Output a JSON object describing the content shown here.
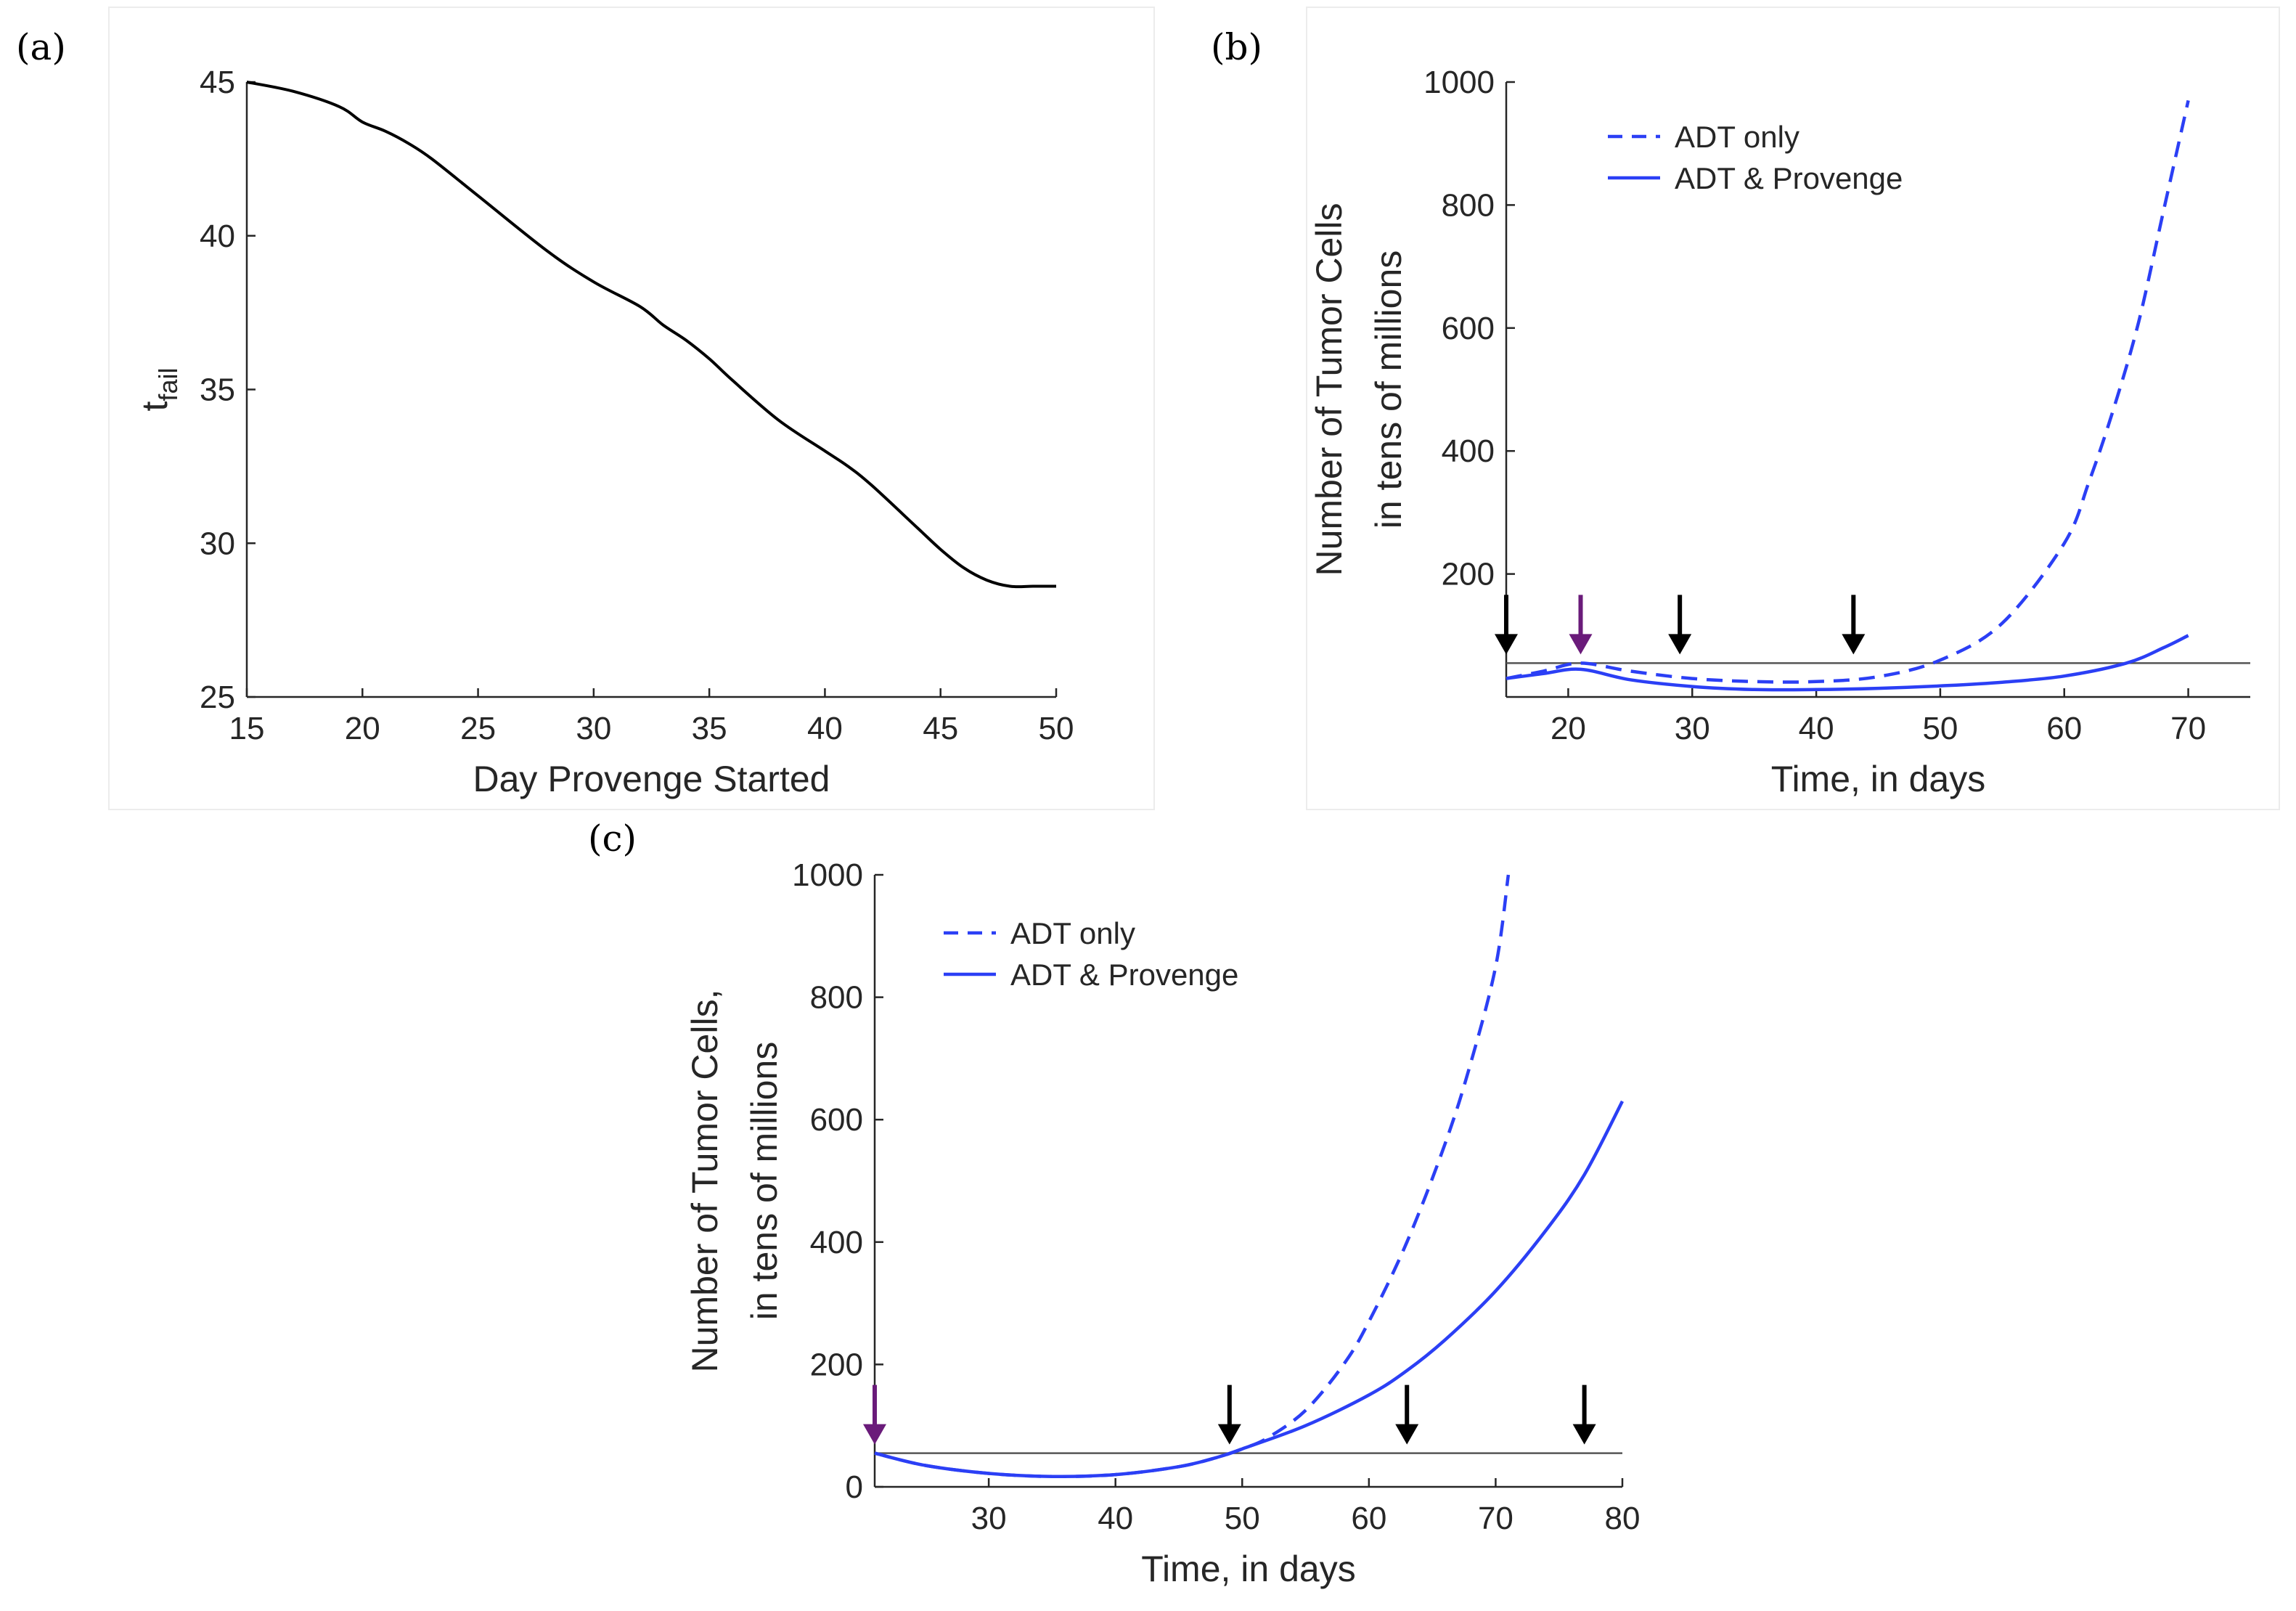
{
  "chart_data": [
    {
      "panel": "(a)",
      "type": "line",
      "xlabel": "Day Provenge Started",
      "ylabel": "t",
      "ylabel_sub": "fail",
      "xlim": [
        15,
        50
      ],
      "ylim": [
        25,
        45
      ],
      "xticks": [
        15,
        20,
        25,
        30,
        35,
        40,
        45,
        50
      ],
      "yticks": [
        25,
        30,
        35,
        40,
        45
      ],
      "color": "#000000",
      "x": [
        15,
        17,
        19,
        20,
        21,
        22,
        23,
        25,
        28,
        30,
        32,
        33,
        34,
        35,
        36,
        38,
        40,
        41,
        42,
        44,
        45,
        46,
        47,
        48,
        49,
        50
      ],
      "y": [
        45,
        44.7,
        44.2,
        43.7,
        43.4,
        43.0,
        42.5,
        41.3,
        39.5,
        38.5,
        37.7,
        37.1,
        36.6,
        36.0,
        35.3,
        34.0,
        33.0,
        32.5,
        31.9,
        30.5,
        29.8,
        29.2,
        28.8,
        28.6,
        28.6,
        28.6
      ]
    },
    {
      "panel": "(b)",
      "type": "line",
      "xlabel": "Time, in days",
      "ylabel": "Number of Tumor Cells",
      "ylabel2": "in tens of millions",
      "xlim": [
        15,
        75
      ],
      "ylim": [
        0,
        1000
      ],
      "xticks": [
        20,
        30,
        40,
        50,
        60,
        70
      ],
      "yticks": [
        200,
        400,
        600,
        800,
        1000
      ],
      "threshold": 55,
      "legend": [
        "ADT only",
        "ADT & Provenge"
      ],
      "series": [
        {
          "name": "ADT only",
          "style": "dashed",
          "color": "#2b3ff5",
          "x": [
            15,
            18,
            21,
            25,
            30,
            35,
            40,
            45,
            50,
            55,
            60,
            62,
            64,
            66,
            68,
            70
          ],
          "y": [
            30,
            42,
            55,
            42,
            30,
            25,
            25,
            33,
            60,
            120,
            250,
            350,
            470,
            610,
            790,
            970
          ]
        },
        {
          "name": "ADT & Provenge",
          "style": "solid",
          "color": "#2b3ff5",
          "x": [
            15,
            18,
            21,
            25,
            30,
            35,
            40,
            45,
            50,
            55,
            60,
            65,
            68,
            70
          ],
          "y": [
            30,
            38,
            45,
            28,
            17,
            12,
            12,
            14,
            18,
            24,
            34,
            55,
            80,
            100
          ]
        }
      ],
      "arrows": [
        {
          "x": 15,
          "color": "#000000"
        },
        {
          "x": 21,
          "color": "#6a1b7a"
        },
        {
          "x": 29,
          "color": "#000000"
        },
        {
          "x": 43,
          "color": "#000000"
        }
      ]
    },
    {
      "panel": "(c)",
      "type": "line",
      "xlabel": "Time, in days",
      "ylabel": "Number of Tumor Cells,",
      "ylabel2": "in tens of millions",
      "xlim": [
        21,
        80
      ],
      "ylim": [
        0,
        1000
      ],
      "xticks": [
        30,
        40,
        50,
        60,
        70,
        80
      ],
      "yticks": [
        0,
        200,
        400,
        600,
        800,
        1000
      ],
      "threshold": 55,
      "legend": [
        "ADT only",
        "ADT & Provenge"
      ],
      "series": [
        {
          "name": "ADT only",
          "style": "dashed",
          "color": "#2b3ff5",
          "x": [
            21,
            25,
            30,
            35,
            40,
            45,
            48,
            50,
            52,
            55,
            58,
            60,
            63,
            66,
            68,
            70,
            71
          ],
          "y": [
            55,
            35,
            22,
            17,
            20,
            33,
            48,
            62,
            80,
            125,
            200,
            270,
            400,
            560,
            690,
            850,
            1000
          ]
        },
        {
          "name": "ADT & Provenge",
          "style": "solid",
          "color": "#2b3ff5",
          "x": [
            21,
            25,
            30,
            35,
            40,
            45,
            48,
            50,
            55,
            60,
            63,
            66,
            70,
            74,
            77,
            80
          ],
          "y": [
            55,
            35,
            22,
            17,
            20,
            33,
            48,
            62,
            100,
            150,
            190,
            240,
            320,
            420,
            510,
            630
          ]
        }
      ],
      "arrows": [
        {
          "x": 21,
          "color": "#6a1b7a"
        },
        {
          "x": 49,
          "color": "#000000"
        },
        {
          "x": 63,
          "color": "#000000"
        },
        {
          "x": 77,
          "color": "#000000"
        }
      ]
    }
  ]
}
